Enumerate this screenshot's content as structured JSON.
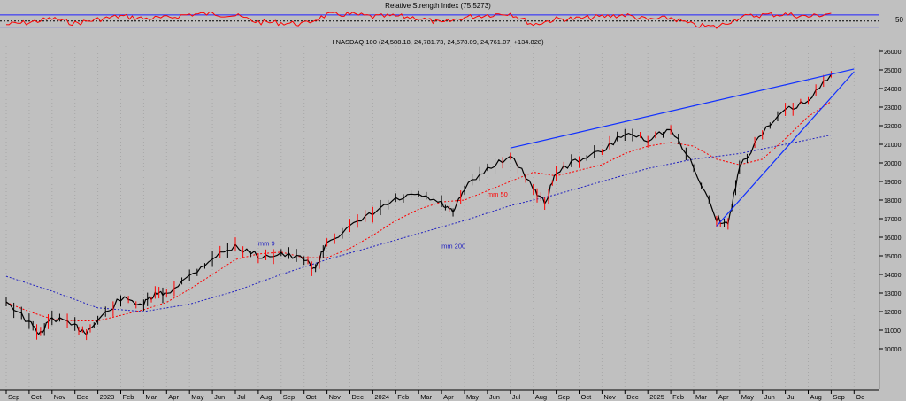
{
  "chart_data": [
    {
      "type": "line",
      "title": "Relative Strength Index (75.5273)",
      "ylabel": "",
      "ylim": [
        20,
        90
      ],
      "reference_lines": [
        30,
        50,
        70
      ],
      "y_tick_labels": [
        "50"
      ],
      "overbought": 70,
      "oversold": 30,
      "series": [
        {
          "name": "",
          "x": [
            "2022-09",
            "2022-10",
            "2022-11",
            "2022-12",
            "2023-01",
            "2023-02",
            "2023-03",
            "2023-04",
            "2023-05",
            "2023-06",
            "2023-07",
            "2023-08",
            "2023-09",
            "2023-10",
            "2023-11",
            "2023-12",
            "2024-01",
            "2024-02",
            "2024-03",
            "2024-04",
            "2024-05",
            "2024-06",
            "2024-07",
            "2024-08",
            "2024-09",
            "2024-10",
            "2024-11",
            "2024-12",
            "2025-01",
            "2025-02",
            "2025-03",
            "2025-04",
            "2025-05",
            "2025-06",
            "2025-07",
            "2025-08",
            "2025-09"
          ],
          "values": [
            38,
            45,
            58,
            42,
            55,
            66,
            58,
            60,
            72,
            74,
            68,
            46,
            44,
            40,
            70,
            72,
            64,
            66,
            60,
            42,
            62,
            70,
            76,
            38,
            56,
            58,
            64,
            70,
            54,
            60,
            36,
            30,
            62,
            70,
            72,
            64,
            75.5
          ]
        }
      ]
    },
    {
      "type": "line",
      "title": "I NASDAQ 100 (24,588.18, 24,781.73, 24,578.09, 24,761.07, +134.828)",
      "xlabel": "",
      "ylabel": "",
      "ylim": [
        9500,
        26500
      ],
      "y_ticks": [
        10000,
        11000,
        12000,
        13000,
        14000,
        15000,
        16000,
        17000,
        18000,
        19000,
        20000,
        21000,
        22000,
        23000,
        24000,
        25000,
        26000
      ],
      "x_tick_labels": [
        "Sep",
        "Oct",
        "Nov",
        "Dec",
        "2023",
        "Feb",
        "Mar",
        "Apr",
        "May",
        "Jun",
        "Jul",
        "Aug",
        "Sep",
        "Oct",
        "Nov",
        "Dec",
        "2024",
        "Feb",
        "Mar",
        "Apr",
        "May",
        "Jun",
        "Jul",
        "Aug",
        "Sep",
        "Oct",
        "Nov",
        "Dec",
        "2025",
        "Feb",
        "Mar",
        "Apr",
        "May",
        "Jun",
        "Jul",
        "Aug",
        "Sep",
        "Oc"
      ],
      "grid": "vertical",
      "series": [
        {
          "name": "",
          "x": [
            "2022-09",
            "2022-10",
            "2022-10b",
            "2022-11",
            "2022-12",
            "2022-12b",
            "2023-01",
            "2023-02",
            "2023-03",
            "2023-03b",
            "2023-04",
            "2023-05",
            "2023-06",
            "2023-07",
            "2023-08",
            "2023-09",
            "2023-10",
            "2023-10b",
            "2023-11",
            "2023-12",
            "2024-01",
            "2024-02",
            "2024-03",
            "2024-04",
            "2024-04b",
            "2024-05",
            "2024-06",
            "2024-07",
            "2024-08",
            "2024-08b",
            "2024-09",
            "2024-10",
            "2024-11",
            "2024-12",
            "2025-01",
            "2025-02",
            "2025-03",
            "2025-04",
            "2025-04b",
            "2025-05",
            "2025-06",
            "2025-07",
            "2025-08",
            "2025-09"
          ],
          "values": [
            12600,
            11400,
            10800,
            11700,
            11200,
            10900,
            11500,
            12700,
            12400,
            12900,
            13000,
            13900,
            14900,
            15500,
            15000,
            15100,
            14800,
            14300,
            15800,
            16500,
            17300,
            18000,
            18300,
            17800,
            17300,
            18600,
            19700,
            20400,
            18700,
            17800,
            19500,
            20200,
            20600,
            21600,
            21300,
            21800,
            19800,
            17000,
            16700,
            19800,
            21600,
            22800,
            23300,
            24761
          ]
        },
        {
          "name": "mm 50",
          "x": [
            "2022-09",
            "2022-10",
            "2022-11",
            "2022-12",
            "2023-01",
            "2023-02",
            "2023-03",
            "2023-04",
            "2023-05",
            "2023-06",
            "2023-07",
            "2023-08",
            "2023-09",
            "2023-10",
            "2023-11",
            "2023-12",
            "2024-01",
            "2024-02",
            "2024-03",
            "2024-04",
            "2024-05",
            "2024-06",
            "2024-07",
            "2024-08",
            "2024-09",
            "2024-10",
            "2024-11",
            "2024-12",
            "2025-01",
            "2025-02",
            "2025-03",
            "2025-04",
            "2025-05",
            "2025-06",
            "2025-07",
            "2025-08",
            "2025-09"
          ],
          "values": [
            12500,
            12000,
            11600,
            11500,
            11500,
            11800,
            12100,
            12500,
            13200,
            14000,
            14800,
            15100,
            15200,
            14900,
            14900,
            15400,
            16100,
            16900,
            17500,
            17900,
            18000,
            18500,
            19000,
            19500,
            19300,
            19600,
            19900,
            20500,
            20900,
            21100,
            20900,
            20200,
            19900,
            20200,
            21300,
            22500,
            23300
          ]
        },
        {
          "name": "mm 200",
          "x": [
            "2022-09",
            "2022-11",
            "2023-01",
            "2023-03",
            "2023-05",
            "2023-07",
            "2023-09",
            "2023-11",
            "2024-01",
            "2024-03",
            "2024-05",
            "2024-07",
            "2024-09",
            "2024-11",
            "2025-01",
            "2025-03",
            "2025-05",
            "2025-07",
            "2025-09"
          ],
          "values": [
            13900,
            13100,
            12200,
            12000,
            12400,
            13100,
            14000,
            14800,
            15500,
            16200,
            16900,
            17700,
            18300,
            19000,
            19700,
            20200,
            20500,
            21000,
            21500
          ]
        }
      ],
      "annotations": [
        {
          "text": "mm 50",
          "x": "2024-06",
          "y": 18200,
          "color": "#ff0000"
        },
        {
          "text": "mm 200",
          "x": "2024-04",
          "y": 15400,
          "color": "#2020c0"
        },
        {
          "text": "mm 9",
          "x": "2023-08",
          "y": 15550,
          "color": "#2020c0"
        }
      ],
      "trendlines": [
        {
          "from": {
            "x": "2024-07",
            "y": 20800
          },
          "to": {
            "x": "2025-10",
            "y": 25050
          },
          "color": "#1030ff"
        },
        {
          "from": {
            "x": "2025-04",
            "y": 16600
          },
          "to": {
            "x": "2025-10",
            "y": 24900
          },
          "color": "#1030ff"
        }
      ]
    }
  ]
}
